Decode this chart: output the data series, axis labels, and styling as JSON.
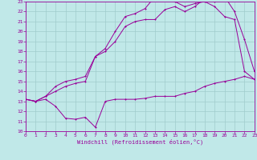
{
  "xlabel": "Windchill (Refroidissement éolien,°C)",
  "xlim": [
    0,
    23
  ],
  "ylim": [
    10,
    23
  ],
  "xticks": [
    0,
    1,
    2,
    3,
    4,
    5,
    6,
    7,
    8,
    9,
    10,
    11,
    12,
    13,
    14,
    15,
    16,
    17,
    18,
    19,
    20,
    21,
    22,
    23
  ],
  "yticks": [
    10,
    11,
    12,
    13,
    14,
    15,
    16,
    17,
    18,
    19,
    20,
    21,
    22,
    23
  ],
  "bg_color": "#c0e8e8",
  "grid_color": "#a0cccc",
  "line_color": "#990099",
  "line1_x": [
    0,
    1,
    2,
    3,
    4,
    5,
    6,
    7,
    8,
    9,
    10,
    11,
    12,
    13,
    14,
    15,
    16,
    17,
    18,
    19,
    20,
    21,
    22,
    23
  ],
  "line1_y": [
    13.2,
    13.0,
    13.2,
    12.5,
    11.3,
    11.2,
    11.4,
    10.4,
    13.0,
    13.2,
    13.2,
    13.2,
    13.3,
    13.5,
    13.5,
    13.5,
    13.8,
    14.0,
    14.5,
    14.8,
    15.0,
    15.2,
    15.5,
    15.2
  ],
  "line2_x": [
    0,
    1,
    2,
    3,
    4,
    5,
    6,
    7,
    8,
    9,
    10,
    11,
    12,
    13,
    14,
    15,
    16,
    17,
    18,
    19,
    20,
    21,
    22,
    23
  ],
  "line2_y": [
    13.2,
    13.0,
    13.5,
    14.0,
    14.5,
    14.8,
    15.0,
    17.5,
    18.0,
    19.0,
    20.5,
    21.0,
    21.2,
    21.2,
    22.2,
    22.5,
    22.0,
    22.5,
    23.3,
    23.0,
    23.5,
    22.0,
    19.2,
    16.0
  ],
  "line3_x": [
    0,
    1,
    2,
    3,
    4,
    5,
    6,
    7,
    8,
    9,
    10,
    11,
    12,
    13,
    14,
    15,
    16,
    17,
    18,
    19,
    20,
    21,
    22,
    23
  ],
  "line3_y": [
    13.2,
    13.0,
    13.5,
    14.5,
    15.0,
    15.2,
    15.5,
    17.5,
    18.3,
    20.0,
    21.5,
    21.8,
    22.3,
    23.5,
    23.5,
    23.0,
    22.5,
    22.8,
    23.0,
    22.5,
    21.5,
    21.2,
    16.0,
    15.2
  ]
}
